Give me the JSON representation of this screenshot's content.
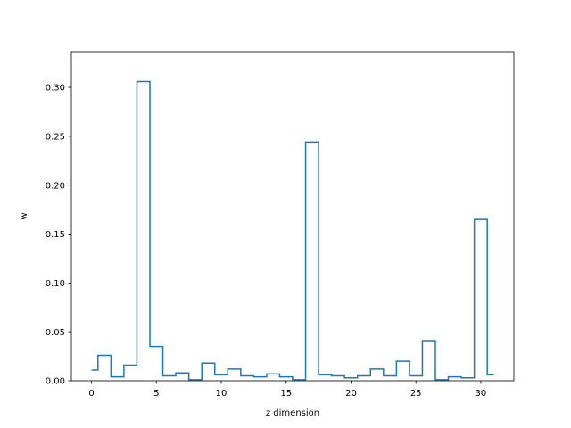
{
  "chart_data": {
    "type": "step",
    "step_where": "mid",
    "title": "",
    "xlabel": "z dimension",
    "ylabel": "w",
    "xlim": [
      -1.55,
      32.55
    ],
    "ylim": [
      0,
      0.3365
    ],
    "xticks": [
      0,
      5,
      10,
      15,
      20,
      25,
      30
    ],
    "yticks": [
      0.0,
      0.05,
      0.1,
      0.15,
      0.2,
      0.25,
      0.3
    ],
    "ytick_format": 2,
    "grid": false,
    "legend": "none",
    "line_color": "#1f77b4",
    "x": [
      0,
      1,
      2,
      3,
      4,
      5,
      6,
      7,
      8,
      9,
      10,
      11,
      12,
      13,
      14,
      15,
      16,
      17,
      18,
      19,
      20,
      21,
      22,
      23,
      24,
      25,
      26,
      27,
      28,
      29,
      30,
      31
    ],
    "values": [
      0.011,
      0.026,
      0.004,
      0.016,
      0.306,
      0.035,
      0.005,
      0.008,
      0.001,
      0.018,
      0.006,
      0.012,
      0.005,
      0.004,
      0.007,
      0.004,
      0.001,
      0.244,
      0.006,
      0.005,
      0.003,
      0.005,
      0.012,
      0.005,
      0.02,
      0.005,
      0.041,
      0.001,
      0.004,
      0.003,
      0.165,
      0.006
    ]
  }
}
